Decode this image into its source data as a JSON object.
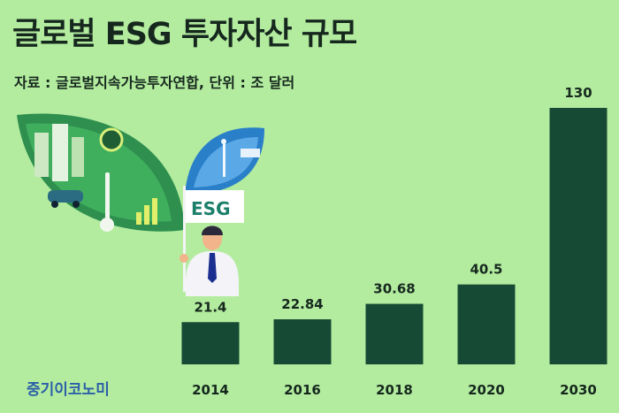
{
  "header": {
    "title": "글로벌 ESG 투자자산 규모",
    "source": "자료 : 글로벌지속가능투자연합, 단위 : 조 달러"
  },
  "illustration": {
    "badge_text": "ESG"
  },
  "brand": {
    "logo_text": "중기이코노미"
  },
  "colors": {
    "background": "#b3ec9f",
    "bar": "#174a34",
    "text": "#16281e",
    "logo": "#2c5fa8"
  },
  "chart_data": {
    "type": "bar",
    "title": "글로벌 ESG 투자자산 규모",
    "categories": [
      "2014",
      "2016",
      "2018",
      "2020",
      "2030"
    ],
    "values": [
      21.4,
      22.84,
      30.68,
      40.5,
      130
    ],
    "value_labels": [
      "21.4",
      "22.84",
      "30.68",
      "40.5",
      "130"
    ],
    "xlabel": "",
    "ylabel": "",
    "ylim": [
      0,
      130
    ],
    "grid": false,
    "legend": "none"
  }
}
